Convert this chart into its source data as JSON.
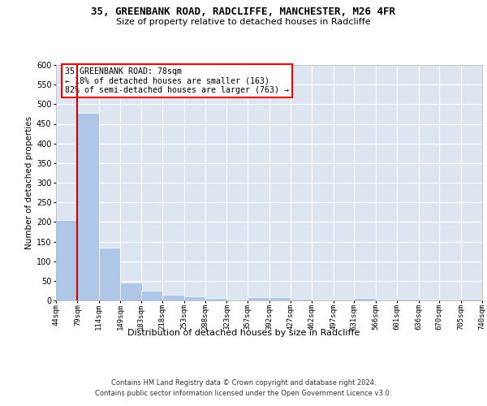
{
  "title1": "35, GREENBANK ROAD, RADCLIFFE, MANCHESTER, M26 4FR",
  "title2": "Size of property relative to detached houses in Radcliffe",
  "xlabel": "Distribution of detached houses by size in Radcliffe",
  "ylabel": "Number of detached properties",
  "footer1": "Contains HM Land Registry data © Crown copyright and database right 2024.",
  "footer2": "Contains public sector information licensed under the Open Government Licence v3.0.",
  "property_size": 78,
  "annotation_title": "35 GREENBANK ROAD: 78sqm",
  "annotation_line1": "← 18% of detached houses are smaller (163)",
  "annotation_line2": "82% of semi-detached houses are larger (763) →",
  "bin_edges": [
    44,
    79,
    114,
    149,
    183,
    218,
    253,
    288,
    323,
    357,
    392,
    427,
    462,
    497,
    531,
    566,
    601,
    636,
    670,
    705,
    740
  ],
  "bar_heights": [
    205,
    478,
    135,
    45,
    25,
    14,
    11,
    6,
    0,
    9,
    8,
    5,
    0,
    0,
    6,
    0,
    5,
    0,
    0,
    5
  ],
  "bar_color": "#aec6e8",
  "line_color": "#cc0000",
  "bg_color": "#dde6f0",
  "grid_color": "#ffffff",
  "ylim": [
    0,
    600
  ],
  "yticks": [
    0,
    50,
    100,
    150,
    200,
    250,
    300,
    350,
    400,
    450,
    500,
    550,
    600
  ]
}
